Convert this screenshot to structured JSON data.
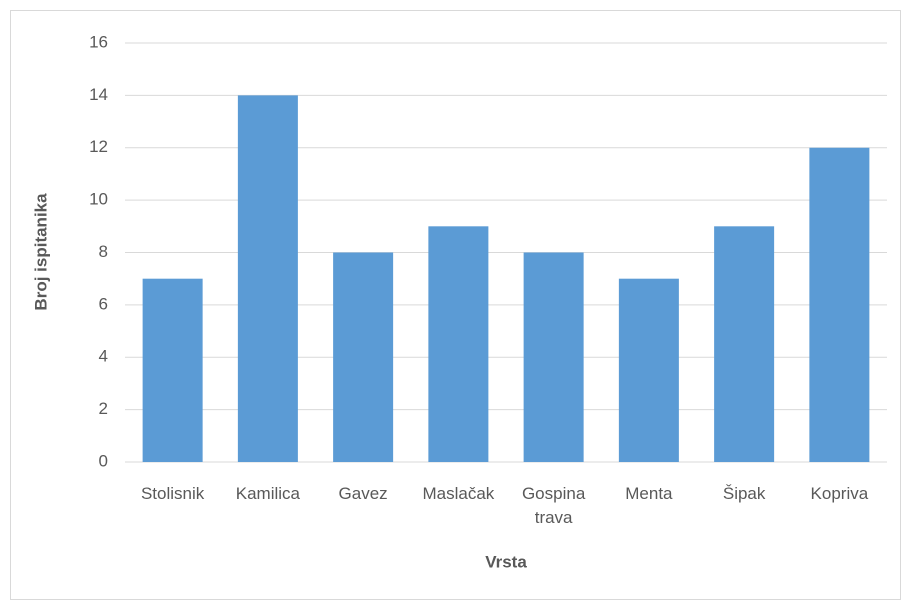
{
  "chart_data": {
    "type": "bar",
    "x_label": "Vrsta",
    "y_label": "Broj ispitanika",
    "categories": [
      "Stolisnik",
      "Kamilica",
      "Gavez",
      "Maslačak",
      "Gospina trava",
      "Menta",
      "Šipak",
      "Kopriva"
    ],
    "values": [
      7,
      14,
      8,
      9,
      8,
      7,
      9,
      12
    ],
    "color": "#5b9bd5",
    "ylim": [
      0,
      16
    ],
    "yticks": [
      0,
      2,
      4,
      6,
      8,
      10,
      12,
      14,
      16
    ],
    "grid": true
  }
}
